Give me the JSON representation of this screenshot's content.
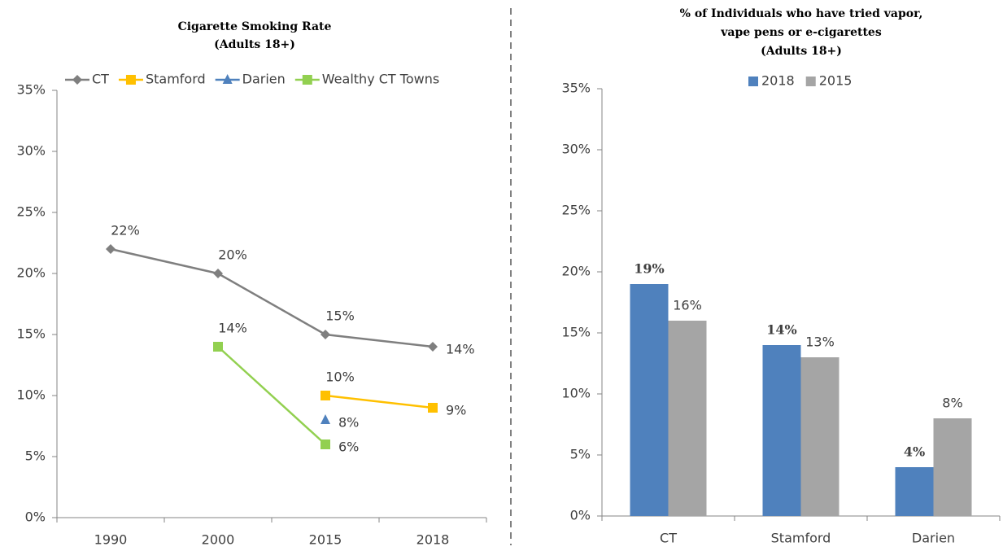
{
  "chart_data": [
    {
      "type": "line",
      "title": "Cigarette Smoking Rate",
      "subtitle": "(Adults 18+)",
      "categories": [
        "1990",
        "2000",
        "2015",
        "2018"
      ],
      "series": [
        {
          "name": "CT",
          "color": "#7f7f7f",
          "marker": "diamond",
          "values": [
            22,
            20,
            15,
            14
          ],
          "value_labels": [
            "22%",
            "20%",
            "15%",
            "14%"
          ]
        },
        {
          "name": "Stamford",
          "color": "#ffc000",
          "marker": "square",
          "values": [
            null,
            null,
            10,
            9
          ],
          "value_labels": [
            null,
            null,
            "10%",
            "9%"
          ]
        },
        {
          "name": "Darien",
          "color": "#4f81bd",
          "marker": "triangle",
          "values": [
            null,
            null,
            8,
            null
          ],
          "value_labels": [
            null,
            null,
            "8%",
            null
          ]
        },
        {
          "name": "Wealthy CT Towns",
          "color": "#92d050",
          "marker": "square",
          "values": [
            null,
            14,
            6,
            null
          ],
          "value_labels": [
            null,
            "14%",
            "6%",
            null
          ]
        }
      ],
      "ylim": [
        0,
        35
      ],
      "yticks": [
        {
          "value": 0,
          "label": "0%"
        },
        {
          "value": 5,
          "label": "5%"
        },
        {
          "value": 10,
          "label": "10%"
        },
        {
          "value": 15,
          "label": "15%"
        },
        {
          "value": 20,
          "label": "20%"
        },
        {
          "value": 25,
          "label": "25%"
        },
        {
          "value": 30,
          "label": "30%"
        },
        {
          "value": 35,
          "label": "35%"
        }
      ],
      "legend": "top"
    },
    {
      "type": "bar",
      "title": "% of Individuals  who have tried vapor,",
      "subtitle": "vape pens  or e-cigarettes",
      "note": "(Adults 18+)",
      "categories": [
        "CT",
        "Stamford",
        "Darien"
      ],
      "series": [
        {
          "name": "2018",
          "color": "#4f81bd",
          "values": [
            19,
            14,
            4
          ],
          "value_labels": [
            "19%",
            "14%",
            "4%"
          ],
          "value_label_colors": [
            "#c00000",
            "#c00000",
            "#00b050"
          ]
        },
        {
          "name": "2015",
          "color": "#a5a5a5",
          "values": [
            16,
            13,
            8
          ],
          "value_labels": [
            "16%",
            "13%",
            "8%"
          ],
          "value_label_colors": [
            "#404040",
            "#404040",
            "#404040"
          ]
        }
      ],
      "ylim": [
        0,
        35
      ],
      "yticks": [
        {
          "value": 0,
          "label": "0%"
        },
        {
          "value": 5,
          "label": "5%"
        },
        {
          "value": 10,
          "label": "10%"
        },
        {
          "value": 15,
          "label": "15%"
        },
        {
          "value": 20,
          "label": "20%"
        },
        {
          "value": 25,
          "label": "25%"
        },
        {
          "value": 30,
          "label": "30%"
        },
        {
          "value": 35,
          "label": "35%"
        }
      ],
      "legend": "top"
    }
  ]
}
